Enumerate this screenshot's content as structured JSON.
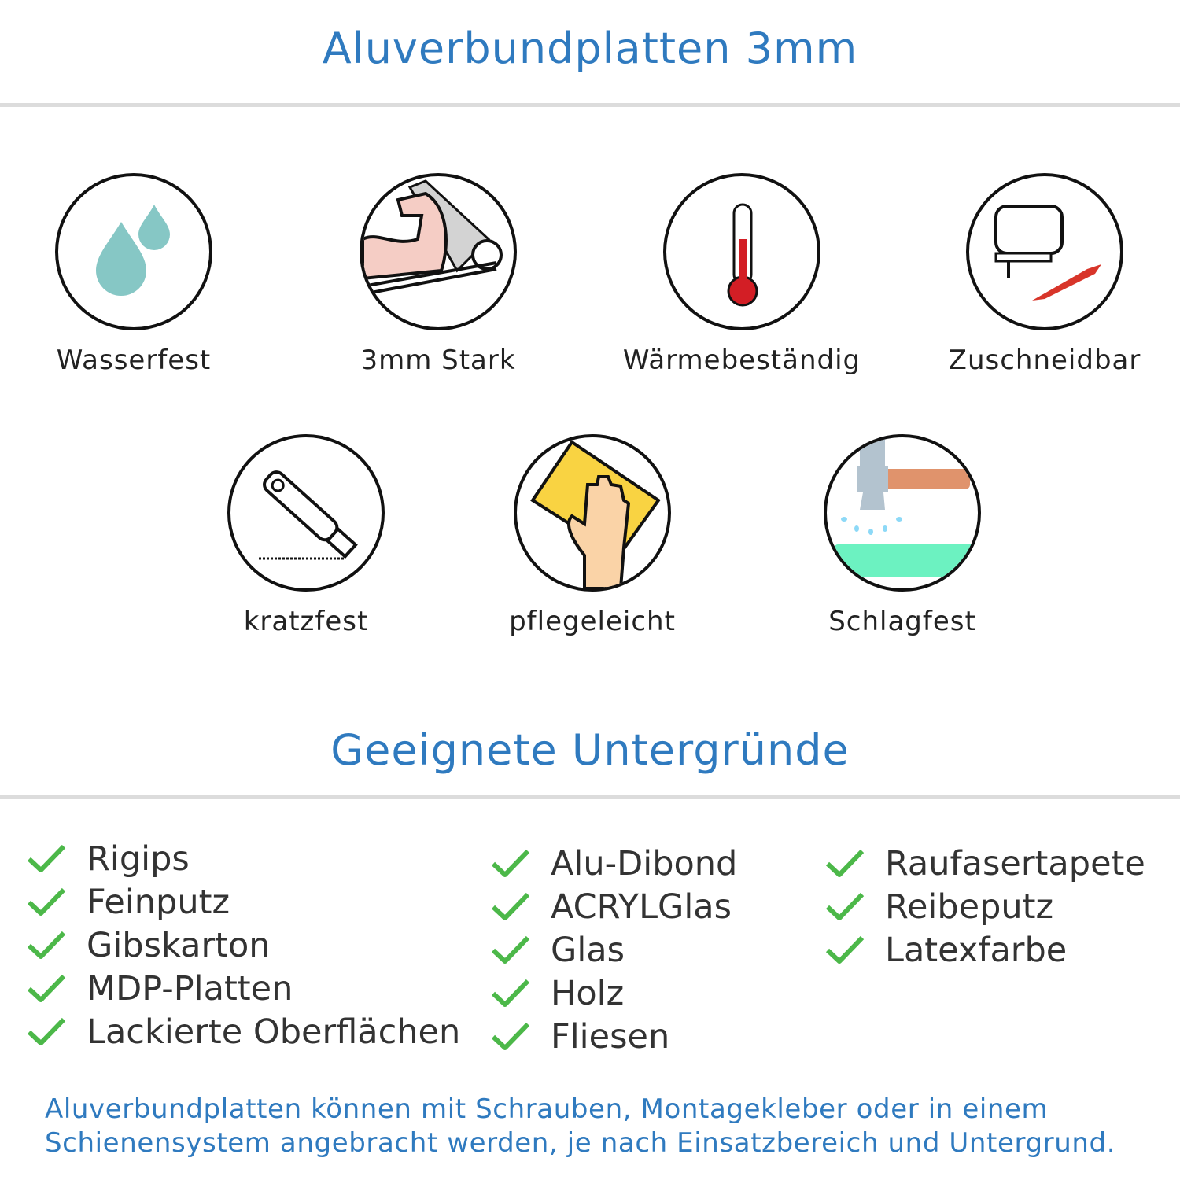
{
  "header": {
    "title": "Aluverbundplatten 3mm"
  },
  "features": [
    {
      "label": "Wasserfest",
      "icon": "water-drops-icon"
    },
    {
      "label": "3mm Stark",
      "icon": "muscle-arm-icon"
    },
    {
      "label": "Wärmebeständig",
      "icon": "thermometer-icon"
    },
    {
      "label": "Zuschneidbar",
      "icon": "jigsaw-icon"
    },
    {
      "label": "kratzfest",
      "icon": "cutter-knife-icon"
    },
    {
      "label": "pflegeleicht",
      "icon": "cleaning-hand-icon"
    },
    {
      "label": "Schlagfest",
      "icon": "hammer-icon"
    }
  ],
  "surfaces": {
    "title": "Geeignete Untergründe",
    "columns": [
      [
        "Rigips",
        "Feinputz",
        "Gibskarton",
        "MDP-Platten",
        "Lackierte Oberflächen"
      ],
      [
        "Alu-Dibond",
        "ACRYLGlas",
        "Glas",
        "Holz",
        "Fliesen"
      ],
      [
        "Raufasertapete",
        "Reibeputz",
        "Latexfarbe"
      ]
    ]
  },
  "note": {
    "line1": "Aluverbundplatten können mit Schrauben, Montagekleber oder in einem",
    "line2": "Schienensystem angebracht werden, je nach Einsatzbereich und Untergrund."
  },
  "colors": {
    "accent": "#2f7abf",
    "check": "#4cb849",
    "rule": "#dcdcdc"
  }
}
